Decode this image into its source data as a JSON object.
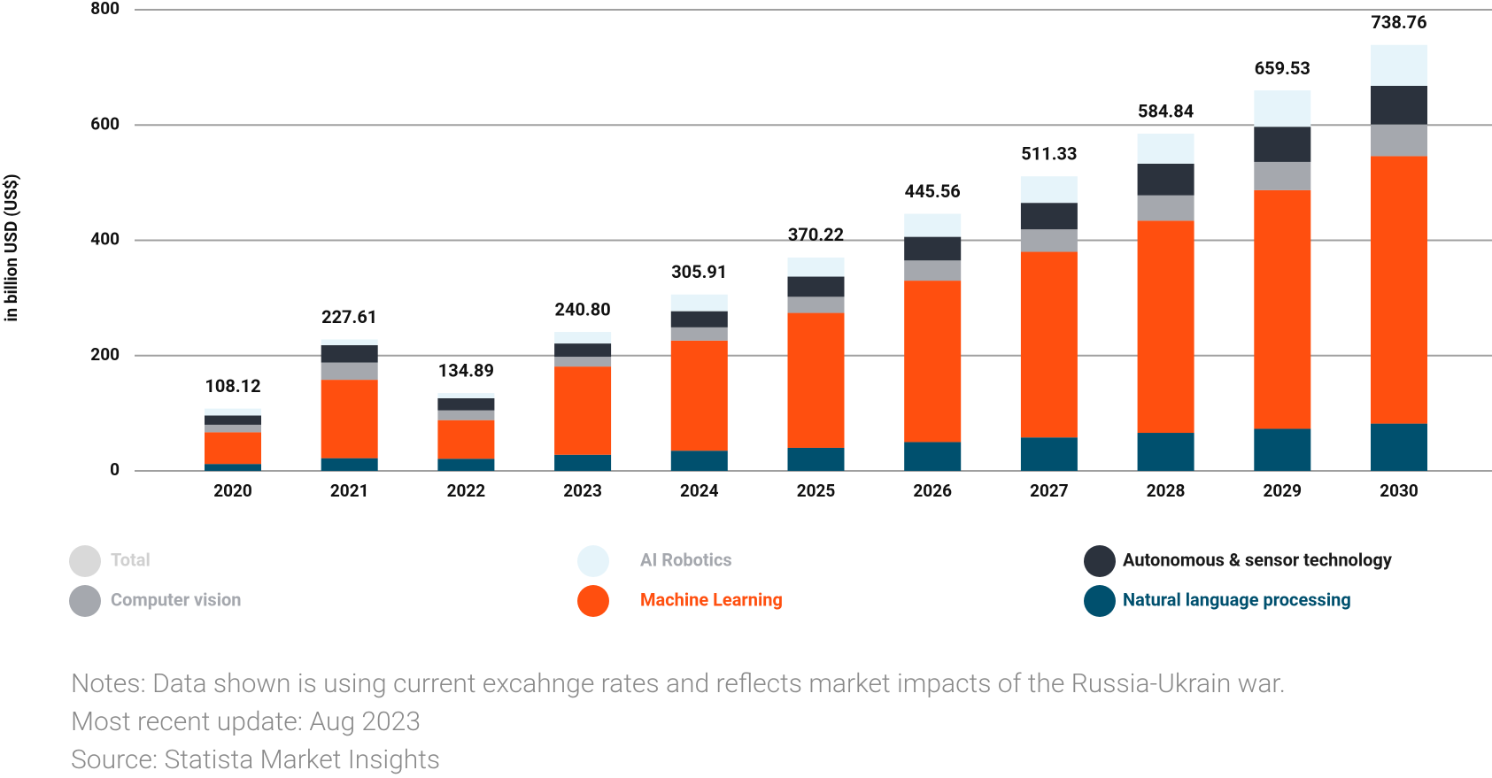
{
  "chart_data": {
    "type": "stacked_bar",
    "y_label": "in billion USD (US$)",
    "categories": [
      "2020",
      "2021",
      "2022",
      "2023",
      "2024",
      "2025",
      "2026",
      "2027",
      "2028",
      "2029",
      "2030"
    ],
    "ylim": [
      0,
      800
    ],
    "yticks": [
      0,
      200,
      400,
      600,
      800
    ],
    "grid": true,
    "series": [
      {
        "name": "Total",
        "color": "#d9d9d9",
        "text_color": "#d0d0d0",
        "visible": false,
        "values": [
          108.12,
          227.61,
          134.89,
          240.8,
          305.91,
          370.22,
          445.56,
          511.33,
          584.84,
          659.53,
          738.76
        ],
        "value_labels": [
          "108.12",
          "227.61",
          "134.89",
          "240.80",
          "305.91",
          "370.22",
          "445.56",
          "511.33",
          "584.84",
          "659.53",
          "738.76"
        ]
      },
      {
        "name": "Natural language processing",
        "color": "#00506e",
        "text_color": "#00506e",
        "values": [
          12,
          22,
          21,
          28,
          35,
          40,
          50,
          58,
          66,
          73,
          82
        ]
      },
      {
        "name": "Machine Learning",
        "color": "#ff4f0f",
        "text_color": "#ff4f0f",
        "values": [
          55,
          136,
          67,
          153,
          191,
          234,
          280,
          322,
          368,
          414,
          464
        ]
      },
      {
        "name": "Computer vision",
        "color": "#a5a8ae",
        "text_color": "#a5a8ae",
        "values": [
          13,
          30,
          17,
          17,
          23,
          28,
          35,
          39,
          44,
          49,
          55
        ]
      },
      {
        "name": "Autonomous & sensor technology",
        "color": "#2b323d",
        "text_color": "#1a1a1a",
        "values": [
          16,
          30,
          21,
          23,
          28,
          35,
          41,
          46,
          55,
          61,
          67
        ]
      },
      {
        "name": "AI Robotics",
        "color": "#e6f4fa",
        "text_color": "#a5a8ae",
        "values": [
          12,
          10,
          9,
          20,
          29,
          33,
          40,
          46,
          52,
          63,
          71
        ]
      }
    ]
  },
  "notes": [
    "Notes: Data shown is using current excahnge rates and reflects market impacts of the Russia-Ukrain war.",
    "Most recent update: Aug 2023",
    "Source: Statista Market Insights"
  ]
}
